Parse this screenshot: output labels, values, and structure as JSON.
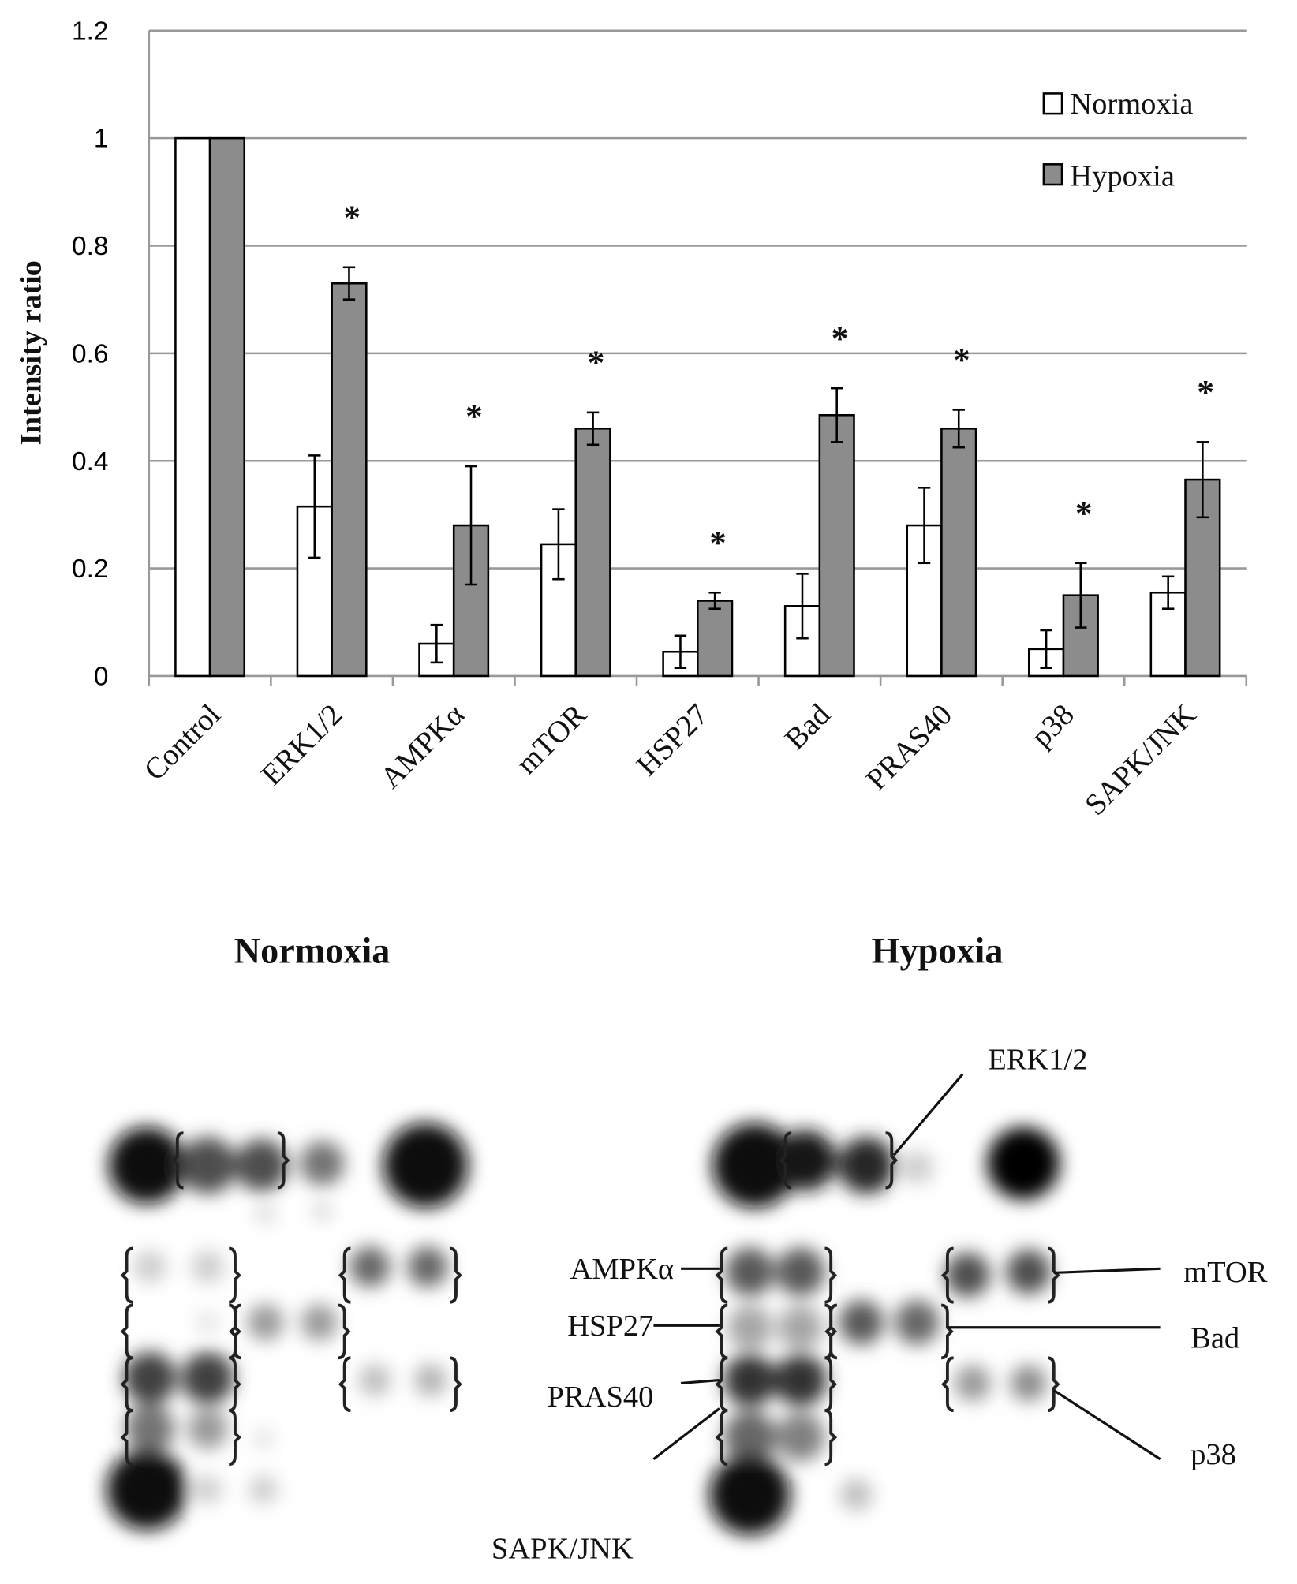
{
  "chart_data": {
    "type": "bar",
    "title": "",
    "xlabel": "",
    "ylabel": "Intensity ratio",
    "ylim": [
      0,
      1.2
    ],
    "yticks": [
      "0",
      "0.2",
      "0.4",
      "0.6",
      "0.8",
      "1",
      "1.2"
    ],
    "grid": true,
    "legend_position": "top-right",
    "categories": [
      "Control",
      "ERK1/2",
      "AMPKα",
      "mTOR",
      "HSP27",
      "Bad",
      "PRAS40",
      "p38",
      "SAPK/JNK"
    ],
    "series": [
      {
        "name": "Normoxia",
        "color": "#ffffff",
        "values": [
          1,
          0.315,
          0.06,
          0.245,
          0.045,
          0.13,
          0.28,
          0.05,
          0.155
        ],
        "errors": [
          0,
          0.095,
          0.035,
          0.065,
          0.03,
          0.06,
          0.07,
          0.035,
          0.03
        ]
      },
      {
        "name": "Hypoxia",
        "color": "#8c8c8c",
        "values": [
          1,
          0.73,
          0.28,
          0.46,
          0.14,
          0.485,
          0.46,
          0.15,
          0.365
        ],
        "errors": [
          0,
          0.03,
          0.11,
          0.03,
          0.015,
          0.05,
          0.035,
          0.06,
          0.07
        ]
      }
    ],
    "significance_marker": "*",
    "significant": [
      false,
      true,
      true,
      true,
      true,
      true,
      true,
      true,
      true
    ]
  },
  "blots": {
    "normoxia_title": "Normoxia",
    "hypoxia_title": "Hypoxia",
    "labels": {
      "erk": "ERK1/2",
      "ampk": "AMPKα",
      "hsp27": "HSP27",
      "pras40": "PRAS40",
      "sapk": "SAPK/JNK",
      "mtor": "mTOR",
      "bad": "Bad",
      "p38": "p38"
    }
  }
}
